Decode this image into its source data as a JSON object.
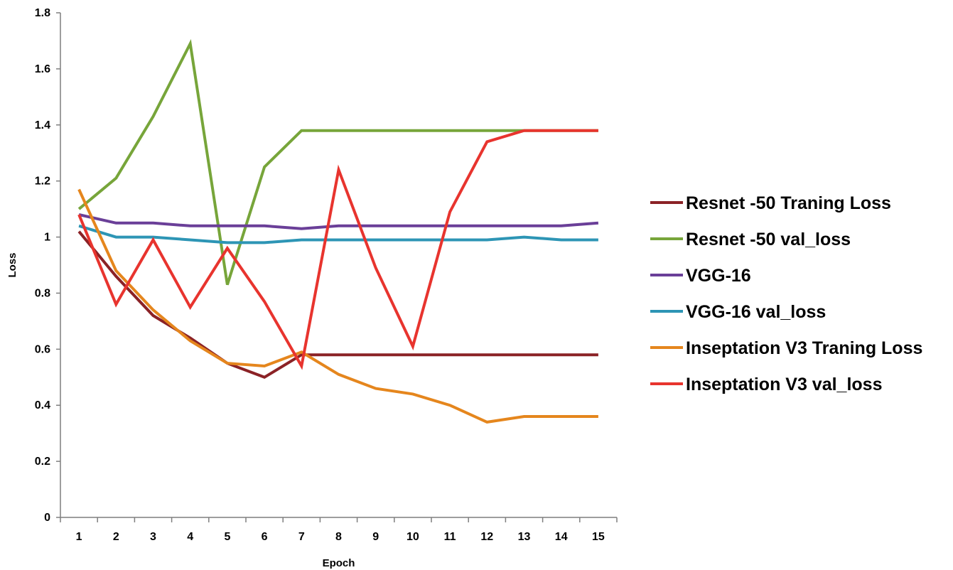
{
  "chart_data": {
    "type": "line",
    "xlabel": "Epoch",
    "ylabel": "Loss",
    "x": [
      1,
      2,
      3,
      4,
      5,
      6,
      7,
      8,
      9,
      10,
      11,
      12,
      13,
      14,
      15
    ],
    "ylim": [
      0,
      1.8
    ],
    "yticks": [
      "0",
      "0.2",
      "0.4",
      "0.6",
      "0.8",
      "1",
      "1.2",
      "1.4",
      "1.6",
      "1.8"
    ],
    "grid": false,
    "legend_position": "right",
    "series": [
      {
        "name": "Resnet -50 Traning Loss",
        "color": "#8b2226",
        "values": [
          1.02,
          0.86,
          0.72,
          0.64,
          0.55,
          0.5,
          0.58,
          0.58,
          0.58,
          0.58,
          0.58,
          0.58,
          0.58,
          0.58,
          0.58
        ]
      },
      {
        "name": "Resnet -50 val_loss",
        "color": "#77a53a",
        "values": [
          1.1,
          1.21,
          1.43,
          1.69,
          0.83,
          1.25,
          1.38,
          1.38,
          1.38,
          1.38,
          1.38,
          1.38,
          1.38,
          1.38,
          1.38
        ]
      },
      {
        "name": "VGG-16",
        "color": "#6a3f98",
        "values": [
          1.08,
          1.05,
          1.05,
          1.04,
          1.04,
          1.04,
          1.03,
          1.04,
          1.04,
          1.04,
          1.04,
          1.04,
          1.04,
          1.04,
          1.05
        ]
      },
      {
        "name": "VGG-16 val_loss",
        "color": "#2d95b5",
        "values": [
          1.04,
          1.0,
          1.0,
          0.99,
          0.98,
          0.98,
          0.99,
          0.99,
          0.99,
          0.99,
          0.99,
          0.99,
          1.0,
          0.99,
          0.99
        ]
      },
      {
        "name": "Inseptation V3 Traning Loss",
        "color": "#e5861d",
        "values": [
          1.17,
          0.88,
          0.74,
          0.63,
          0.55,
          0.54,
          0.59,
          0.51,
          0.46,
          0.44,
          0.4,
          0.34,
          0.36,
          0.36,
          0.36
        ]
      },
      {
        "name": "Inseptation V3 val_loss",
        "color": "#e8342e",
        "values": [
          1.08,
          0.76,
          0.99,
          0.75,
          0.96,
          0.77,
          0.54,
          1.24,
          0.89,
          0.61,
          1.09,
          1.34,
          1.38,
          1.38,
          1.38
        ]
      }
    ]
  }
}
